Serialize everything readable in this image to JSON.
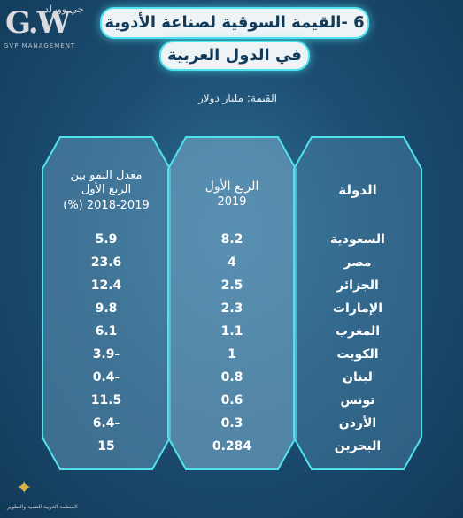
{
  "logo": {
    "mark": "G.W",
    "arabic_text": "جي وورلد",
    "tagline": "GVP MANAGEMENT",
    "bottom_caption": "المنظمة العربية للتنمية والتطوير"
  },
  "title": {
    "line1": "6 -القيمة السوقية لصناعة الأدوية",
    "line2": "في الدول العربية"
  },
  "unit": "القيمة: مليار دولار",
  "columns": {
    "country": {
      "header": "الدولة"
    },
    "q1": {
      "header_line1": "الربع الأول",
      "header_line2": "2019"
    },
    "growth": {
      "header_line1": "معدل النمو بين",
      "header_line2": "الربع الأول",
      "header_line3": "2018-2019 (%)"
    }
  },
  "rows": [
    {
      "country": "السعودية",
      "q1": "8.2",
      "growth": "5.9"
    },
    {
      "country": "مصر",
      "q1": "4",
      "growth": "23.6"
    },
    {
      "country": "الجزائر",
      "q1": "2.5",
      "growth": "12.4"
    },
    {
      "country": "الإمارات",
      "q1": "2.3",
      "growth": "9.8"
    },
    {
      "country": "المغرب",
      "q1": "1.1",
      "growth": "6.1"
    },
    {
      "country": "الكويت",
      "q1": "1",
      "growth": "3.9-"
    },
    {
      "country": "لبنان",
      "q1": "0.8",
      "growth": "0.4-"
    },
    {
      "country": "تونس",
      "q1": "0.6",
      "growth": "11.5"
    },
    {
      "country": "الأردن",
      "q1": "0.3",
      "growth": "6.4-"
    },
    {
      "country": "البحرين",
      "q1": "0.284",
      "growth": "15"
    }
  ],
  "colors": {
    "accent_glow": "#4fe3f0",
    "background": "#1d4e72",
    "title_text": "#123a59",
    "column_fill": "#5d93b4"
  }
}
